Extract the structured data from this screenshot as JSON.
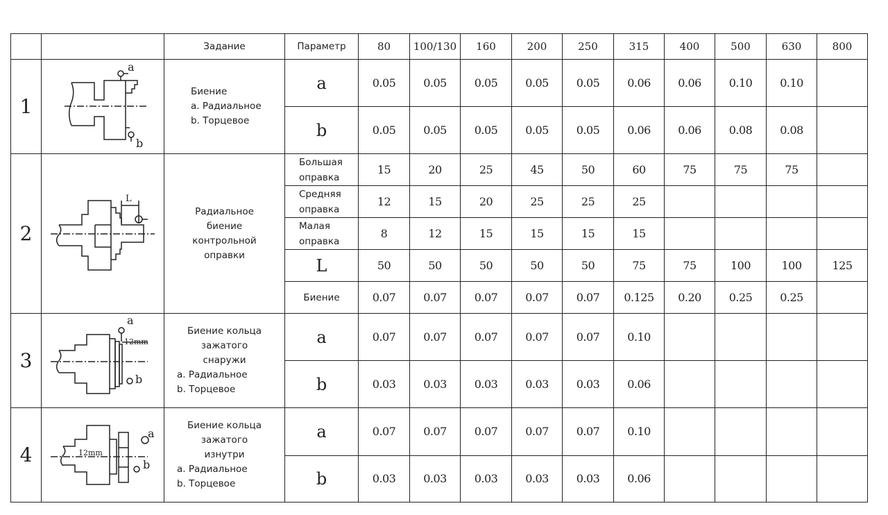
{
  "header": {
    "task": "Задание",
    "parameter": "Параметр",
    "sizes": [
      "80",
      "100/130",
      "160",
      "200",
      "250",
      "315",
      "400",
      "500",
      "630",
      "800"
    ]
  },
  "sections": [
    {
      "index": "1",
      "diagram": {
        "labels": [
          "a",
          "b"
        ]
      },
      "task_lines": [
        "Биение",
        "a. Радиальное",
        "b. Торцевое"
      ],
      "task_align": "left",
      "rows": [
        {
          "param": "a",
          "style": "big",
          "values": [
            "0.05",
            "0.05",
            "0.05",
            "0.05",
            "0.05",
            "0.06",
            "0.06",
            "0.10",
            "0.10",
            ""
          ]
        },
        {
          "param": "b",
          "style": "big",
          "values": [
            "0.05",
            "0.05",
            "0.05",
            "0.05",
            "0.05",
            "0.06",
            "0.06",
            "0.08",
            "0.08",
            ""
          ]
        }
      ]
    },
    {
      "index": "2",
      "diagram": {
        "labels": [
          "L"
        ]
      },
      "task_lines": [
        "Радиальное",
        "биение",
        "контрольной",
        "оправки"
      ],
      "task_align": "center",
      "rows": [
        {
          "param": "Большая оправка",
          "style": "small",
          "values": [
            "15",
            "20",
            "25",
            "45",
            "50",
            "60",
            "75",
            "75",
            "75",
            ""
          ]
        },
        {
          "param": "Средняя оправка",
          "style": "small",
          "values": [
            "12",
            "15",
            "20",
            "25",
            "25",
            "25",
            "",
            "",
            "",
            ""
          ]
        },
        {
          "param": "Малая оправка",
          "style": "small",
          "values": [
            "8",
            "12",
            "15",
            "15",
            "15",
            "15",
            "",
            "",
            "",
            ""
          ]
        },
        {
          "param": "L",
          "style": "big",
          "values": [
            "50",
            "50",
            "50",
            "50",
            "50",
            "75",
            "75",
            "100",
            "100",
            "125"
          ]
        },
        {
          "param": "Биение",
          "style": "mid",
          "values": [
            "0.07",
            "0.07",
            "0.07",
            "0.07",
            "0.07",
            "0.125",
            "0.20",
            "0.25",
            "0.25",
            ""
          ]
        }
      ]
    },
    {
      "index": "3",
      "diagram": {
        "labels": [
          "a",
          "b",
          "12mm"
        ]
      },
      "task_lines": [
        "Биение кольца",
        "зажатого",
        "снаружи",
        "a. Радиальное",
        "b. Торцевое"
      ],
      "task_align": "mixed",
      "rows": [
        {
          "param": "a",
          "style": "big",
          "values": [
            "0.07",
            "0.07",
            "0.07",
            "0.07",
            "0.07",
            "0.10",
            "",
            "",
            "",
            ""
          ]
        },
        {
          "param": "b",
          "style": "big",
          "values": [
            "0.03",
            "0.03",
            "0.03",
            "0.03",
            "0.03",
            "0.06",
            "",
            "",
            "",
            ""
          ]
        }
      ]
    },
    {
      "index": "4",
      "diagram": {
        "labels": [
          "a",
          "b",
          "12mm"
        ]
      },
      "task_lines": [
        "Биение кольца",
        "зажатого",
        "изнутри",
        "a. Радиальное",
        "b. Торцевое"
      ],
      "task_align": "mixed",
      "rows": [
        {
          "param": "a",
          "style": "big",
          "values": [
            "0.07",
            "0.07",
            "0.07",
            "0.07",
            "0.07",
            "0.10",
            "",
            "",
            "",
            ""
          ]
        },
        {
          "param": "b",
          "style": "big",
          "values": [
            "0.03",
            "0.03",
            "0.03",
            "0.03",
            "0.03",
            "0.06",
            "",
            "",
            "",
            ""
          ]
        }
      ]
    }
  ]
}
